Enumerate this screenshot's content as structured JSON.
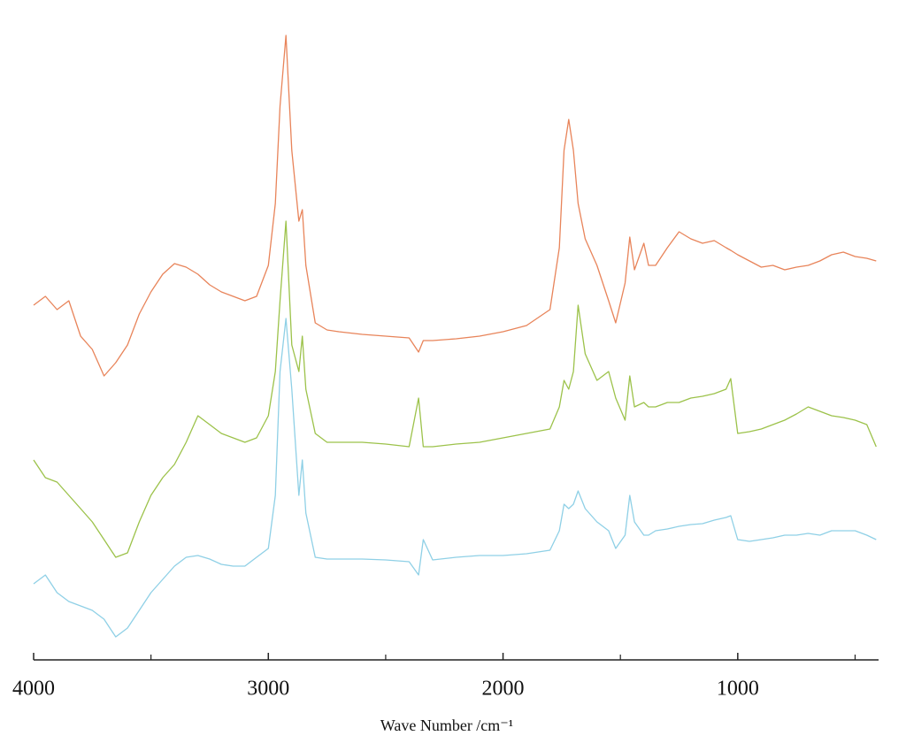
{
  "chart_data": {
    "type": "line",
    "xlabel": "Wave Number /cm⁻¹",
    "x": [
      4000,
      3950,
      3900,
      3850,
      3800,
      3750,
      3700,
      3650,
      3600,
      3550,
      3500,
      3450,
      3400,
      3350,
      3300,
      3250,
      3200,
      3150,
      3100,
      3050,
      3000,
      2970,
      2950,
      2925,
      2900,
      2870,
      2855,
      2840,
      2800,
      2750,
      2700,
      2600,
      2500,
      2400,
      2360,
      2340,
      2300,
      2200,
      2100,
      2000,
      1900,
      1800,
      1760,
      1740,
      1720,
      1700,
      1680,
      1650,
      1600,
      1550,
      1520,
      1480,
      1460,
      1440,
      1400,
      1380,
      1350,
      1300,
      1250,
      1200,
      1150,
      1100,
      1050,
      1030,
      1000,
      950,
      900,
      850,
      800,
      750,
      700,
      650,
      600,
      550,
      500,
      450,
      410
    ],
    "series": [
      {
        "color": "#e8845a",
        "values": [
          401,
          411,
          396,
          406,
          366,
          351,
          321,
          336,
          356,
          391,
          416,
          436,
          448,
          444,
          436,
          424,
          416,
          411,
          406,
          411,
          446,
          516,
          626,
          706,
          576,
          496,
          509,
          446,
          381,
          373,
          371,
          368,
          366,
          364,
          348,
          361,
          361,
          363,
          366,
          371,
          378,
          396,
          466,
          576,
          611,
          576,
          516,
          476,
          446,
          406,
          381,
          426,
          478,
          441,
          471,
          446,
          446,
          466,
          484,
          476,
          471,
          474,
          466,
          463,
          458,
          451,
          444,
          446,
          441,
          444,
          446,
          451,
          458,
          461,
          456,
          454,
          451
        ]
      },
      {
        "color": "#9cc24a",
        "values": [
          226,
          206,
          201,
          186,
          171,
          156,
          136,
          116,
          121,
          156,
          186,
          206,
          221,
          246,
          276,
          266,
          256,
          251,
          246,
          251,
          276,
          326,
          406,
          496,
          356,
          326,
          366,
          306,
          256,
          246,
          246,
          246,
          244,
          241,
          296,
          241,
          241,
          244,
          246,
          251,
          256,
          261,
          286,
          316,
          306,
          326,
          401,
          346,
          316,
          326,
          296,
          271,
          321,
          286,
          291,
          286,
          286,
          291,
          291,
          296,
          298,
          301,
          306,
          318,
          256,
          258,
          261,
          266,
          271,
          278,
          286,
          281,
          276,
          274,
          271,
          266,
          241
        ]
      },
      {
        "color": "#8fd0e6",
        "values": [
          86,
          96,
          76,
          66,
          61,
          56,
          46,
          26,
          36,
          56,
          76,
          91,
          106,
          116,
          118,
          114,
          108,
          106,
          106,
          116,
          126,
          186,
          326,
          386,
          306,
          186,
          226,
          166,
          116,
          114,
          114,
          114,
          113,
          111,
          96,
          136,
          113,
          116,
          118,
          118,
          120,
          124,
          146,
          176,
          171,
          176,
          191,
          171,
          156,
          146,
          126,
          141,
          186,
          156,
          141,
          141,
          146,
          148,
          151,
          153,
          154,
          158,
          161,
          163,
          136,
          134,
          136,
          138,
          141,
          141,
          143,
          141,
          146,
          146,
          146,
          141,
          136
        ]
      }
    ],
    "xlim": [
      4000,
      400
    ],
    "xticks": [
      4000,
      3000,
      2000,
      1000
    ],
    "xminor_ticks": [
      3500,
      2500,
      1500,
      500
    ],
    "ylim": [
      0,
      716
    ]
  }
}
